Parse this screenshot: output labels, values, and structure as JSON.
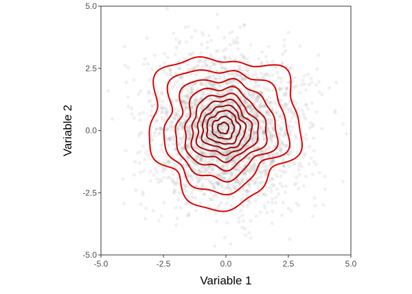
{
  "chart_data": {
    "type": "scatter",
    "subtype": "scatter-with-density-contours",
    "title": "",
    "xlabel": "Variable 1",
    "ylabel": "Variable 2",
    "xlim": [
      -5.0,
      5.0
    ],
    "ylim": [
      -5.0,
      5.0
    ],
    "x_ticks": [
      -5.0,
      -2.5,
      0.0,
      2.5,
      5.0
    ],
    "x_tick_labels": [
      "-5.0",
      "-2.5",
      "0.0",
      "2.5",
      "5.0"
    ],
    "y_ticks": [
      -5.0,
      -2.5,
      0.0,
      2.5,
      5.0
    ],
    "y_tick_labels": [
      "-5.0",
      "-2.5",
      "0.0",
      "2.5",
      "5.0"
    ],
    "grid": false,
    "legend": "none",
    "points": {
      "distribution": "bivariate normal",
      "center": [
        0,
        0
      ],
      "sd": [
        1.5,
        1.5
      ],
      "approx_count": 2500,
      "color": "#9a9a9a",
      "opacity": 0.15
    },
    "contours": {
      "center": [
        -0.1,
        0.1
      ],
      "levels": [
        {
          "level": 1,
          "radius": 3.0
        },
        {
          "level": 2,
          "radius": 2.45
        },
        {
          "level": 3,
          "radius": 2.0
        },
        {
          "level": 4,
          "radius": 1.62
        },
        {
          "level": 5,
          "radius": 1.32
        },
        {
          "level": 6,
          "radius": 1.08
        },
        {
          "level": 7,
          "radius": 0.86
        },
        {
          "level": 8,
          "radius": 0.66
        },
        {
          "level": 9,
          "radius": 0.44
        },
        {
          "level": 10,
          "radius": 0.22
        }
      ],
      "color_outer": "#e00000",
      "color_inner": "#7a0000"
    }
  }
}
